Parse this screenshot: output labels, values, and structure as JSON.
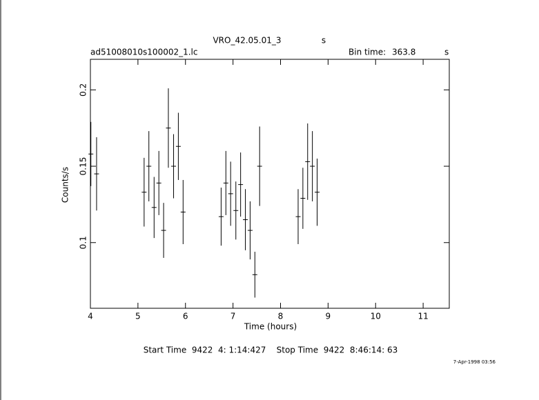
{
  "chart_data": {
    "type": "errorbar",
    "title": "VRO_42.05.01_3",
    "title_unit": "s",
    "file_label": "ad51008010s100002_1.lc",
    "bin_time_label": "Bin time:",
    "bin_time": "363.8",
    "bin_time_unit": "s",
    "x_label": "Time (hours)",
    "y_label": "Counts/s",
    "footer": "Start Time  9422  4: 1:14:427    Stop Time  9422  8:46:14: 63",
    "date_stamp": "7-Apr-1998 03:56",
    "color": "#000000",
    "xlim": [
      4,
      11.55
    ],
    "ylim": [
      0.057,
      0.22
    ],
    "xticks": [
      4,
      5,
      6,
      7,
      8,
      9,
      10,
      11
    ],
    "yticks": [
      0.1,
      0.15,
      0.2
    ],
    "x": [
      4.01,
      4.13,
      5.13,
      5.23,
      5.34,
      5.44,
      5.54,
      5.64,
      5.75,
      5.85,
      5.95,
      6.75,
      6.85,
      6.95,
      7.06,
      7.16,
      7.26,
      7.36,
      7.46,
      7.56,
      8.37,
      8.47,
      8.57,
      8.67,
      8.77
    ],
    "values": [
      0.158,
      0.145,
      0.133,
      0.15,
      0.123,
      0.139,
      0.108,
      0.175,
      0.15,
      0.163,
      0.12,
      0.117,
      0.139,
      0.132,
      0.121,
      0.138,
      0.115,
      0.108,
      0.079,
      0.15,
      0.117,
      0.129,
      0.153,
      0.15,
      0.133
    ],
    "errors": [
      0.021,
      0.024,
      0.0225,
      0.023,
      0.02,
      0.021,
      0.018,
      0.026,
      0.021,
      0.022,
      0.021,
      0.019,
      0.021,
      0.021,
      0.019,
      0.021,
      0.02,
      0.019,
      0.015,
      0.026,
      0.018,
      0.02,
      0.025,
      0.023,
      0.022
    ]
  }
}
